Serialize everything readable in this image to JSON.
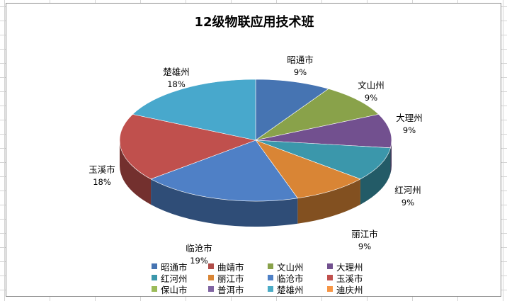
{
  "chart_data": {
    "type": "pie",
    "title": "12级物联应用技术班",
    "slices": [
      {
        "name": "昭通市",
        "percent": "9%",
        "value": 9,
        "color": "#4674b2"
      },
      {
        "name": "文山州",
        "percent": "9%",
        "value": 9,
        "color": "#89a24a"
      },
      {
        "name": "大理州",
        "percent": "9%",
        "value": 9,
        "color": "#72508f"
      },
      {
        "name": "红河州",
        "percent": "9%",
        "value": 9,
        "color": "#3b97ab"
      },
      {
        "name": "丽江市",
        "percent": "9%",
        "value": 9,
        "color": "#d98535"
      },
      {
        "name": "临沧市",
        "percent": "19%",
        "value": 19,
        "color": "#4f80c6"
      },
      {
        "name": "玉溪市",
        "percent": "18%",
        "value": 18,
        "color": "#c0504d"
      },
      {
        "name": "楚雄州",
        "percent": "18%",
        "value": 18,
        "color": "#48a8cc"
      }
    ],
    "legend": [
      {
        "name": "昭通市",
        "color": "#4674b2"
      },
      {
        "name": "曲靖市",
        "color": "#b04c48"
      },
      {
        "name": "文山州",
        "color": "#89a24a"
      },
      {
        "name": "大理州",
        "color": "#72508f"
      },
      {
        "name": "红河州",
        "color": "#3b97ab"
      },
      {
        "name": "丽江市",
        "color": "#d98535"
      },
      {
        "name": "临沧市",
        "color": "#4f80c6"
      },
      {
        "name": "玉溪市",
        "color": "#c0504d"
      },
      {
        "name": "保山市",
        "color": "#9bbb59"
      },
      {
        "name": "普洱市",
        "color": "#8064a2"
      },
      {
        "name": "楚雄州",
        "color": "#4bacc6"
      },
      {
        "name": "迪庆州",
        "color": "#f79646"
      }
    ],
    "legend_position": "bottom"
  }
}
